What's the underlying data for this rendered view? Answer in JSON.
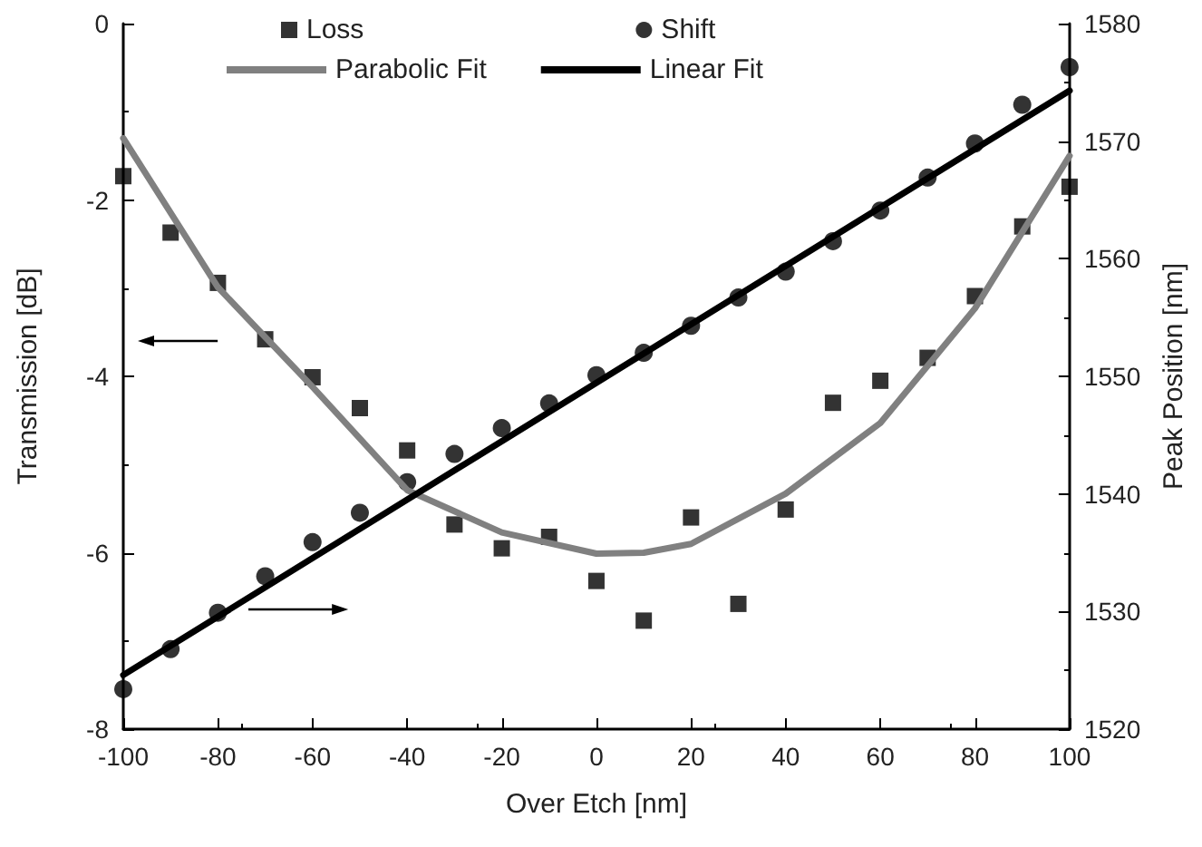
{
  "chart_data": {
    "type": "scatter",
    "xlabel": "Over Etch [nm]",
    "ylabel": "Transmission [dB]",
    "y2label": "Peak Position [nm]",
    "xlim": [
      -100,
      100
    ],
    "xticks": [
      -100,
      -80,
      -60,
      -40,
      -20,
      0,
      20,
      40,
      60,
      80,
      100
    ],
    "ylim": [
      -8,
      0
    ],
    "yticks": [
      -8,
      -6,
      -4,
      -2,
      0
    ],
    "y2lim": [
      1520,
      1580
    ],
    "y2ticks": [
      1520,
      1530,
      1540,
      1550,
      1560,
      1570,
      1580
    ],
    "grid": false,
    "legend": "top",
    "series": [
      {
        "name": "Loss",
        "marker": "square",
        "color": "#000000",
        "x": [
          -100,
          -90,
          -80,
          -70,
          -60,
          -50,
          -40,
          -30,
          -20,
          -10,
          0,
          10,
          20,
          30,
          40,
          50,
          60,
          70,
          80,
          90,
          100
        ],
        "values": [
          -1.73,
          -2.37,
          -2.94,
          -3.58,
          -4.01,
          -4.36,
          -4.84,
          -5.68,
          -5.95,
          -5.82,
          -6.32,
          -6.77,
          -5.6,
          -6.58,
          -5.51,
          -4.3,
          -4.05,
          -3.79,
          -3.09,
          -2.3,
          -1.85
        ]
      },
      {
        "name": "Shift",
        "marker": "circle",
        "axis": "y2",
        "color": "#000000",
        "x": [
          -100,
          -90,
          -80,
          -70,
          -60,
          -50,
          -40,
          -30,
          -20,
          -10,
          0,
          10,
          20,
          30,
          40,
          50,
          60,
          70,
          80,
          90,
          100
        ],
        "values": [
          1523.4,
          1526.8,
          1529.9,
          1533.0,
          1535.9,
          1538.4,
          1541.0,
          1543.4,
          1545.6,
          1547.7,
          1550.1,
          1552.0,
          1554.3,
          1556.7,
          1558.9,
          1561.5,
          1564.1,
          1566.9,
          1569.8,
          1573.1,
          1576.3
        ]
      },
      {
        "name": "Parabolic Fit",
        "type": "line",
        "marker": "none",
        "color": "#808080",
        "x": [
          -100,
          -80,
          -60,
          -40,
          -20,
          0,
          10,
          20,
          40,
          60,
          80,
          100
        ],
        "values": [
          -1.3,
          -2.99,
          -4.12,
          -5.29,
          -5.77,
          -6.01,
          -6.0,
          -5.9,
          -5.33,
          -4.53,
          -3.23,
          -1.5
        ]
      },
      {
        "name": "Linear Fit",
        "type": "line",
        "marker": "none",
        "axis": "y2",
        "color": "#000000",
        "x": [
          -100,
          100
        ],
        "values": [
          1524.6,
          1574.3
        ]
      }
    ]
  }
}
